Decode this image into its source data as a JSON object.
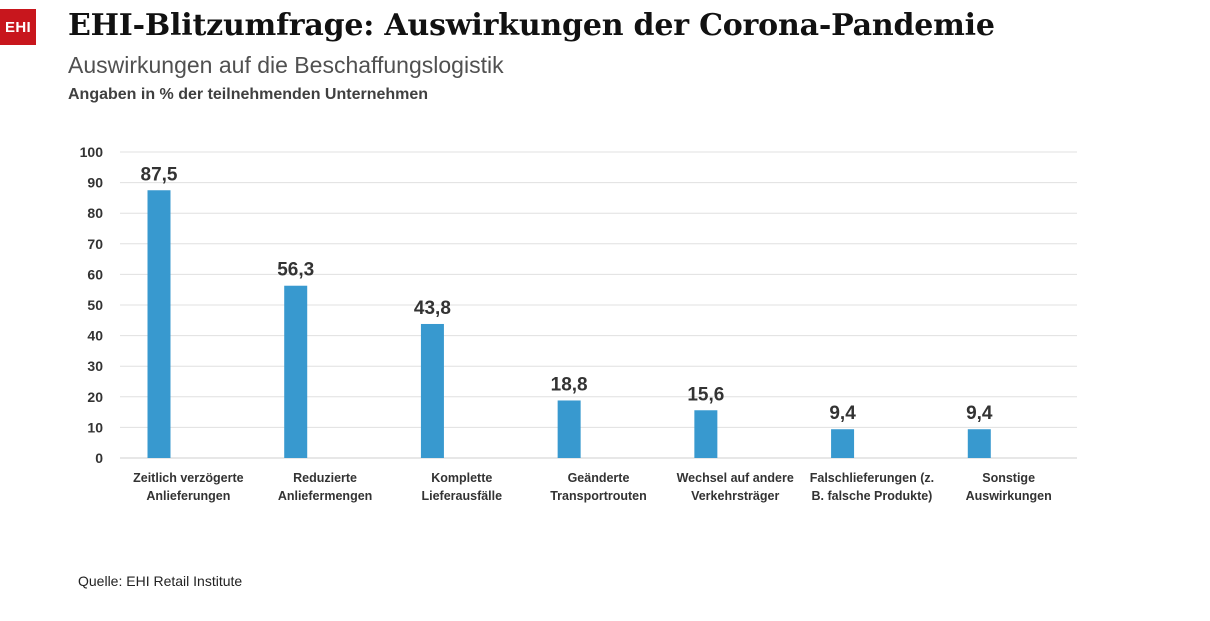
{
  "brand": {
    "logo_text": "EHI",
    "logo_color": "#c8161d"
  },
  "header": {
    "title": "EHI-Blitzumfrage: Auswirkungen der Corona-Pandemie",
    "subtitle": "Auswirkungen auf die Beschaffungslogistik",
    "units_note": "Angaben in % der teilnehmenden Unternehmen"
  },
  "footer": {
    "source": "Quelle: EHI Retail Institute"
  },
  "chart_data": {
    "type": "bar",
    "title": "",
    "xlabel": "",
    "ylabel": "",
    "ylim": [
      0,
      100
    ],
    "yticks": [
      0,
      10,
      20,
      30,
      40,
      50,
      60,
      70,
      80,
      90,
      100
    ],
    "grid": true,
    "legend": "none",
    "bar_color": "#3899cf",
    "categories": [
      [
        "Zeitlich verzögerte",
        "Anlieferungen"
      ],
      [
        "Reduzierte",
        "Anliefermengen"
      ],
      [
        "Komplette",
        "Lieferausfälle"
      ],
      [
        "Geänderte",
        "Transportrouten"
      ],
      [
        "Wechsel auf andere",
        "Verkehrsträger"
      ],
      [
        "Falschlieferungen (z.",
        "B. falsche Produkte)"
      ],
      [
        "Sonstige",
        "Auswirkungen"
      ]
    ],
    "values": [
      87.5,
      56.3,
      43.8,
      18.8,
      15.6,
      9.4,
      9.4
    ],
    "value_labels": [
      "87,5",
      "56,3",
      "43,8",
      "18,8",
      "15,6",
      "9,4",
      "9,4"
    ]
  }
}
